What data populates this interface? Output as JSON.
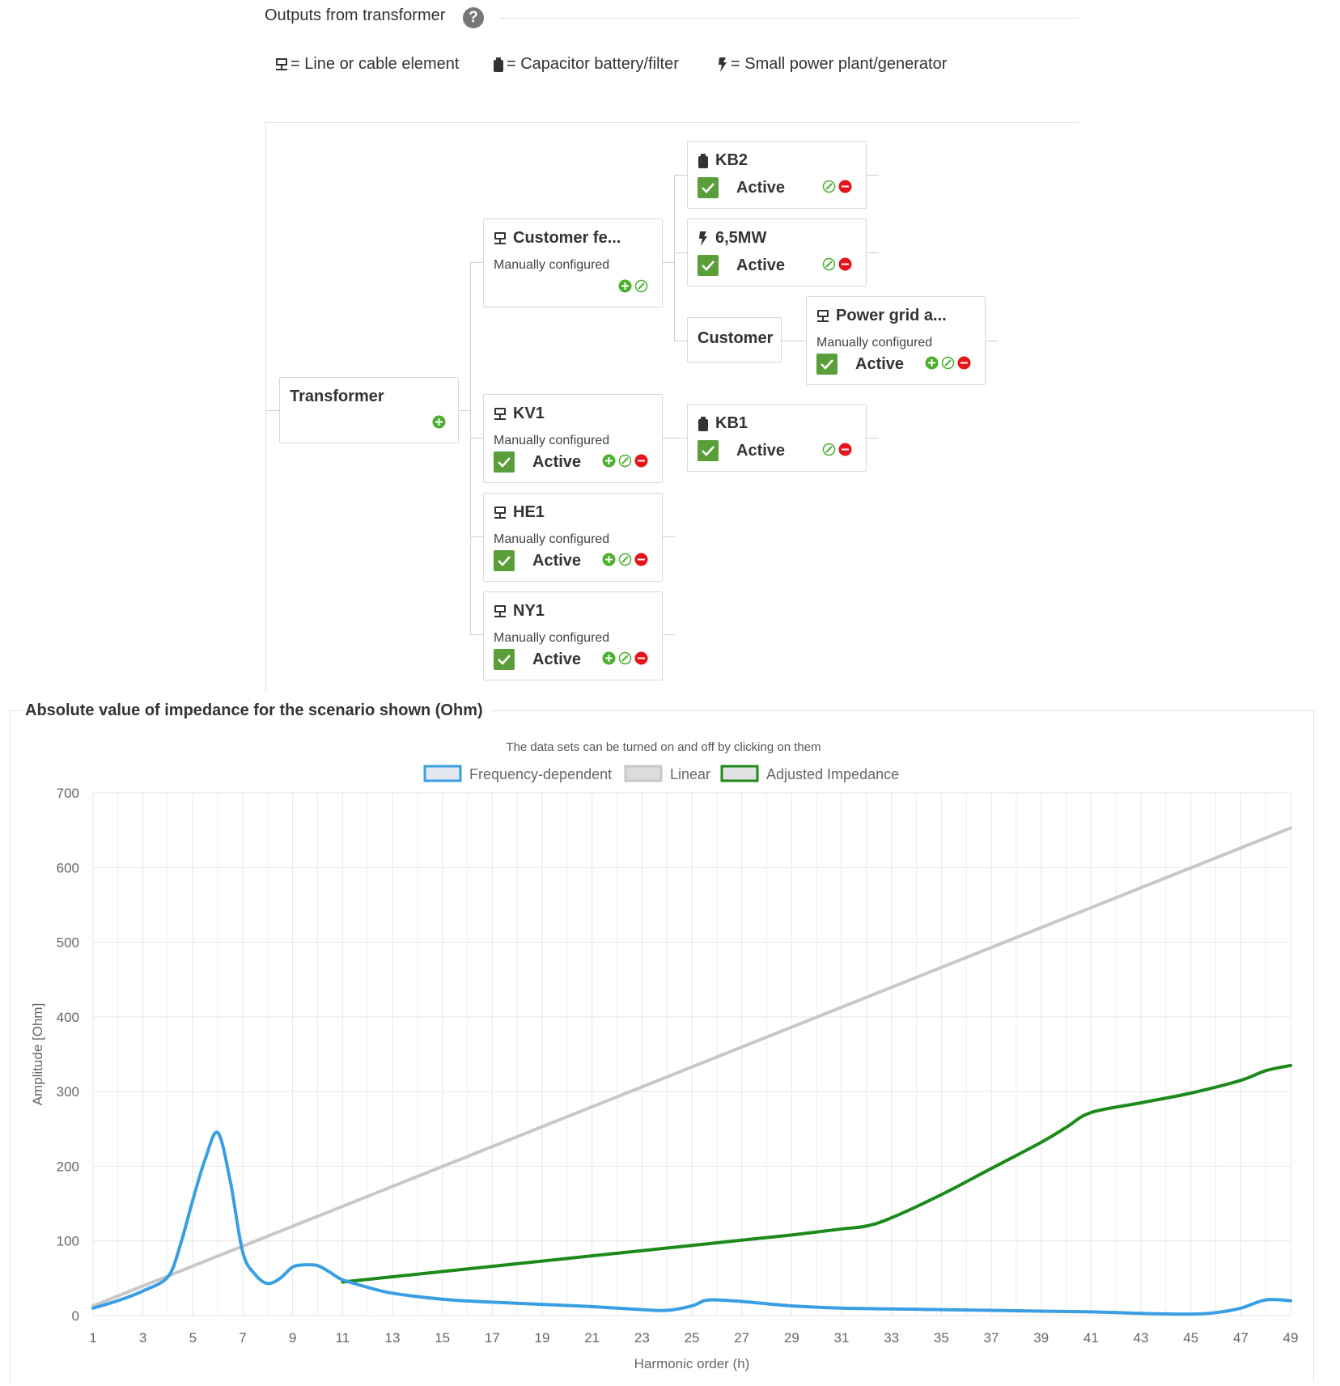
{
  "header": {
    "title": "Outputs from transformer",
    "help_icon": "question-circle-icon"
  },
  "legend": [
    {
      "icon": "line-cable-icon",
      "text": "= Line or cable element"
    },
    {
      "icon": "capacitor-battery-icon",
      "text": "= Capacitor battery/filter"
    },
    {
      "icon": "lightning-bolt-icon",
      "text": "= Small power plant/generator"
    }
  ],
  "tree": {
    "transformer": {
      "title": "Transformer"
    },
    "customer_feeder": {
      "title": "Customer fe...",
      "sub": "Manually configured"
    },
    "kb2": {
      "title": "KB2",
      "status": "Active"
    },
    "mw": {
      "title": "6,5MW",
      "status": "Active"
    },
    "customer": {
      "title": "Customer"
    },
    "power_grid": {
      "title": "Power grid a...",
      "sub": "Manually configured",
      "status": "Active"
    },
    "kv1": {
      "title": "KV1",
      "sub": "Manually configured",
      "status": "Active"
    },
    "kb1": {
      "title": "KB1",
      "status": "Active"
    },
    "he1": {
      "title": "HE1",
      "sub": "Manually configured",
      "status": "Active"
    },
    "ny1": {
      "title": "NY1",
      "sub": "Manually configured",
      "status": "Active"
    },
    "colors": {
      "active_green": "#5a9e3a",
      "add_green": "#4caf2e",
      "remove_red": "#e8141c"
    }
  },
  "chart_section": {
    "title": "Absolute value of impedance for the scenario shown (Ohm)"
  },
  "chart_data": {
    "type": "line",
    "subtitle": "The data sets can be turned on and off by clicking on them",
    "xlabel": "Harmonic order (h)",
    "ylabel": "Amplitude [Ohm]",
    "ylim": [
      0,
      700
    ],
    "xlim": [
      1,
      49
    ],
    "yticks": [
      0,
      100,
      200,
      300,
      400,
      500,
      600,
      700
    ],
    "xticks": [
      1,
      3,
      5,
      7,
      9,
      11,
      13,
      15,
      17,
      19,
      21,
      23,
      25,
      27,
      29,
      31,
      33,
      35,
      37,
      39,
      41,
      43,
      45,
      47,
      49
    ],
    "grid": true,
    "legend_position": "top",
    "series": [
      {
        "name": "Frequency-dependent",
        "color": "#3a9ee3",
        "x": [
          1,
          2,
          3,
          4,
          4.5,
          5,
          5.5,
          6,
          6.5,
          7,
          7.5,
          8,
          8.5,
          9,
          9.5,
          10,
          10.5,
          11,
          12,
          13,
          15,
          17,
          19,
          21,
          23,
          24,
          25,
          25.5,
          26,
          27,
          29,
          31,
          33,
          35,
          37,
          39,
          41,
          43,
          45,
          46,
          47,
          48,
          49
        ],
        "y": [
          10,
          20,
          33,
          52,
          95,
          155,
          210,
          245,
          180,
          85,
          55,
          43,
          50,
          65,
          68,
          67,
          58,
          48,
          38,
          30,
          22,
          18,
          15,
          12,
          8,
          7,
          13,
          20,
          21,
          19,
          13,
          10,
          9,
          8,
          7,
          6,
          5,
          3,
          2,
          4,
          10,
          21,
          20
        ]
      },
      {
        "name": "Linear",
        "color": "#c8c8c8",
        "x": [
          1,
          49
        ],
        "y": [
          13,
          653
        ]
      },
      {
        "name": "Adjusted Impedance",
        "color": "#1b8a1b",
        "x": [
          11,
          13,
          15,
          17,
          19,
          21,
          23,
          25,
          27,
          29,
          31,
          32,
          33,
          35,
          37,
          39,
          40,
          41,
          43,
          45,
          47,
          48,
          49
        ],
        "y": [
          45,
          52,
          59,
          66,
          73,
          80,
          87,
          94,
          101,
          108,
          116,
          120,
          131,
          162,
          197,
          232,
          252,
          272,
          285,
          298,
          315,
          328,
          335
        ]
      }
    ]
  }
}
